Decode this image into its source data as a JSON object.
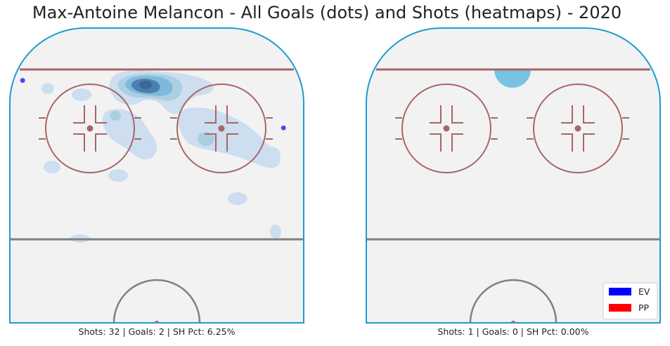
{
  "title": "Max-Antoine Melancon - All Goals (dots) and Shots (heatmaps) - 2020",
  "colors": {
    "rink_ice": "#f2f2f2",
    "boards": "#1f9bd1",
    "red_line": "#a76666",
    "center_line": "#808080",
    "heat_light": "#c6dbef",
    "heat_mid": "#6baed6",
    "heat_dark": "#2c6ca6",
    "heat_darkest": "#1d4f80",
    "pp_shot": "#78c3e3",
    "ev_goal": "#0000ff",
    "pp_goal": "#ff0000"
  },
  "legend": {
    "items": [
      {
        "label": "EV",
        "color": "#0000ff"
      },
      {
        "label": "PP",
        "color": "#ff0000"
      }
    ]
  },
  "chart_data": [
    {
      "type": "heatmap",
      "panel": "left",
      "strength": "EV",
      "caption": "Shots: 32 | Goals: 2 | SH Pct: 6.25%",
      "stats": {
        "shots": 32,
        "goals": 2,
        "sh_pct": "6.25%"
      },
      "goals": [
        {
          "x": 83,
          "y": -36,
          "strength": "EV"
        },
        {
          "x": 57,
          "y": 34,
          "strength": "EV"
        }
      ]
    },
    {
      "type": "heatmap",
      "panel": "right",
      "strength": "PP",
      "caption": "Shots: 1 | Goals: 0 | SH Pct: 0.00%",
      "stats": {
        "shots": 1,
        "goals": 0,
        "sh_pct": "0.00%"
      },
      "goals": []
    }
  ]
}
